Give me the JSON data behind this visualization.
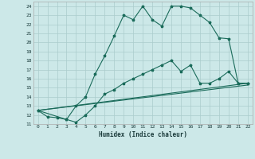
{
  "xlabel": "Humidex (Indice chaleur)",
  "bg_color": "#cce8e8",
  "grid_color": "#aacccc",
  "line_color": "#1a6b5a",
  "xlim": [
    -0.5,
    22.5
  ],
  "ylim": [
    11,
    24.5
  ],
  "yticks": [
    11,
    12,
    13,
    14,
    15,
    16,
    17,
    18,
    19,
    20,
    21,
    22,
    23,
    24
  ],
  "xticks": [
    0,
    1,
    2,
    3,
    4,
    5,
    6,
    7,
    8,
    9,
    10,
    11,
    12,
    13,
    14,
    15,
    16,
    17,
    18,
    19,
    20,
    21,
    22
  ],
  "line1_x": [
    0,
    1,
    2,
    3,
    4,
    5,
    6,
    7,
    8,
    9,
    10,
    11,
    12,
    13,
    14,
    15,
    16,
    17,
    18,
    19,
    20,
    21,
    22
  ],
  "line1_y": [
    12.5,
    11.8,
    11.7,
    11.5,
    13.0,
    14.0,
    16.5,
    18.5,
    20.7,
    23.0,
    22.5,
    24.0,
    22.5,
    21.8,
    24.0,
    24.0,
    23.8,
    23.0,
    22.2,
    20.5,
    20.4,
    15.5,
    15.5
  ],
  "line2_x": [
    0,
    3,
    4,
    5,
    6,
    7,
    8,
    9,
    10,
    11,
    12,
    13,
    14,
    15,
    16,
    17,
    18,
    19,
    20,
    21,
    22
  ],
  "line2_y": [
    12.5,
    11.5,
    11.2,
    12.0,
    13.0,
    14.3,
    14.8,
    15.5,
    16.0,
    16.5,
    17.0,
    17.5,
    18.0,
    16.8,
    17.5,
    15.5,
    15.5,
    16.0,
    16.8,
    15.5,
    15.5
  ],
  "line3_x": [
    0,
    22
  ],
  "line3_y": [
    12.5,
    15.5
  ],
  "line4_x": [
    0,
    22
  ],
  "line4_y": [
    12.5,
    15.3
  ]
}
